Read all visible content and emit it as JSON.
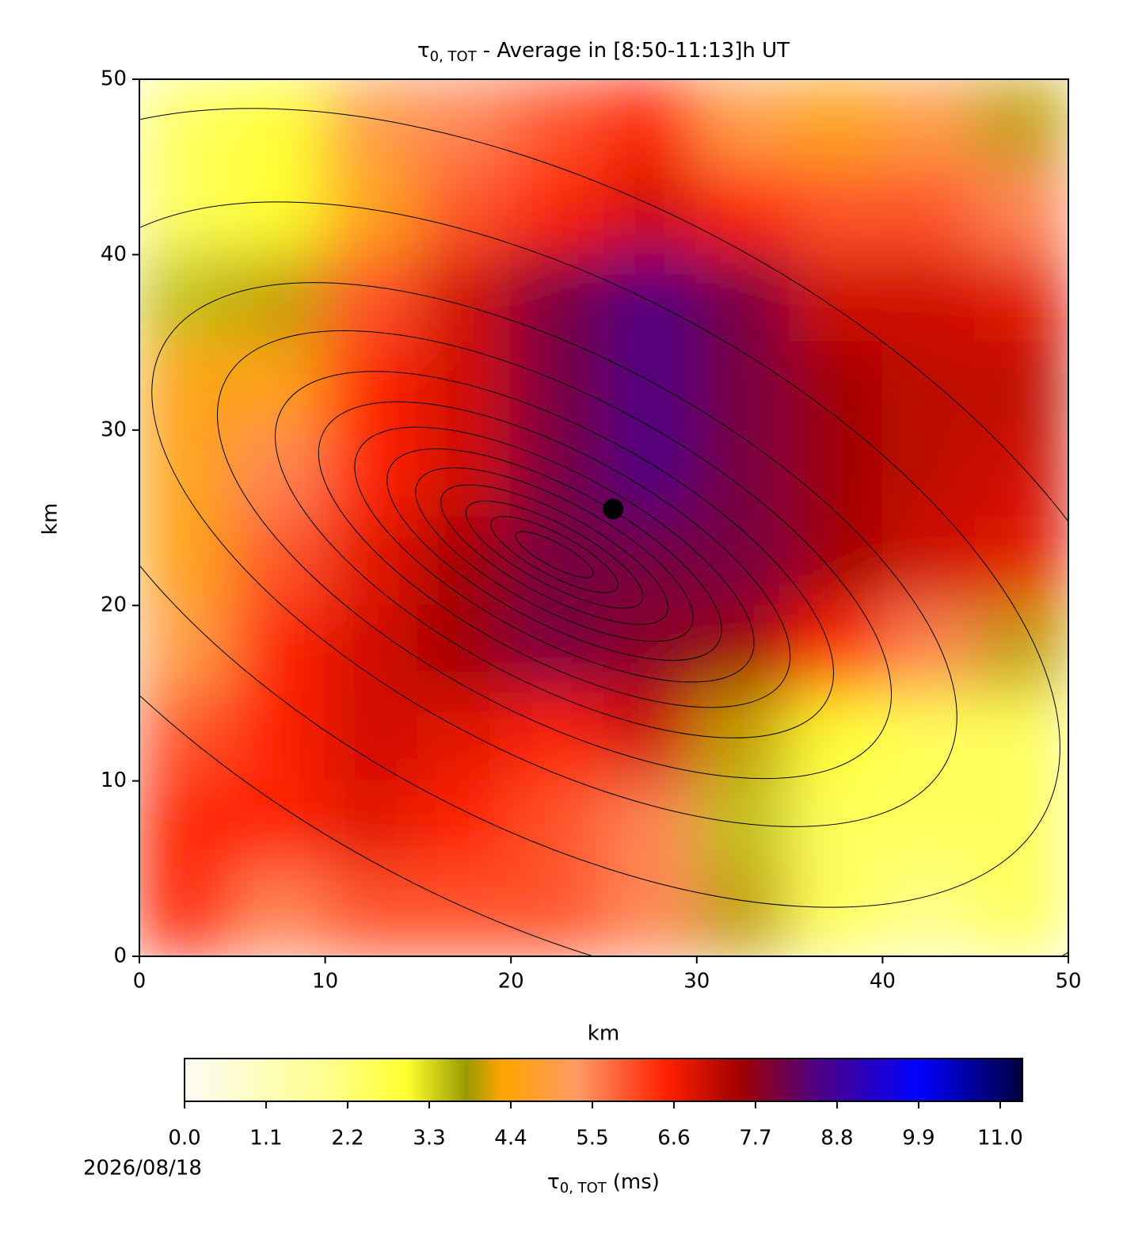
{
  "chart_data": {
    "type": "heatmap",
    "title": {
      "symbol": "τ",
      "subscript": "0, TOT",
      "text": "- Average in [8:50-11:13]h UT"
    },
    "xlabel": "km",
    "ylabel": "km",
    "xlim": [
      0,
      50
    ],
    "ylim": [
      0,
      50
    ],
    "xticks": [
      0,
      10,
      20,
      30,
      40,
      50
    ],
    "yticks": [
      0,
      10,
      20,
      30,
      40,
      50
    ],
    "x": [
      2.5,
      7.5,
      12.5,
      17.5,
      22.5,
      27.5,
      32.5,
      37.5,
      42.5,
      47.5
    ],
    "y": [
      47.5,
      42.5,
      37.5,
      32.5,
      27.5,
      22.5,
      17.5,
      12.5,
      7.5,
      2.5
    ],
    "z": [
      [
        2.5,
        3.0,
        5.0,
        5.5,
        6.0,
        6.5,
        5.0,
        4.5,
        5.0,
        4.0
      ],
      [
        2.5,
        3.0,
        4.5,
        6.0,
        6.5,
        7.0,
        6.5,
        6.0,
        6.0,
        5.5
      ],
      [
        3.5,
        4.0,
        6.0,
        7.0,
        8.0,
        8.5,
        8.0,
        7.0,
        7.0,
        6.8
      ],
      [
        4.5,
        4.5,
        6.5,
        7.0,
        8.0,
        8.5,
        8.0,
        7.5,
        7.2,
        7.2
      ],
      [
        4.5,
        5.5,
        6.5,
        7.0,
        8.0,
        8.5,
        8.0,
        7.5,
        7.2,
        7.0
      ],
      [
        4.5,
        6.0,
        6.8,
        7.5,
        8.0,
        8.0,
        8.0,
        7.5,
        7.0,
        6.8
      ],
      [
        5.0,
        6.5,
        7.0,
        7.5,
        8.0,
        7.8,
        7.5,
        6.5,
        5.5,
        4.0
      ],
      [
        6.0,
        6.5,
        7.0,
        6.8,
        6.5,
        7.0,
        4.0,
        3.0,
        2.5,
        2.5
      ],
      [
        6.5,
        6.5,
        6.8,
        6.5,
        6.0,
        5.5,
        3.5,
        2.5,
        2.5,
        2.5
      ],
      [
        6.5,
        5.5,
        6.0,
        6.0,
        6.0,
        5.5,
        4.0,
        2.5,
        2.0,
        2.5
      ]
    ],
    "marker": {
      "x": 25.5,
      "y": 25.5,
      "color": "#000000"
    },
    "colorbar": {
      "label": {
        "symbol": "τ",
        "subscript": "0, TOT",
        "text": "(ms)"
      },
      "lim": [
        0,
        11.3
      ],
      "ticks": [
        {
          "value": 0,
          "label": "0.0"
        },
        {
          "value": 1.1,
          "label": "1.1"
        },
        {
          "value": 2.2,
          "label": "2.2"
        },
        {
          "value": 3.3,
          "label": "3.3"
        },
        {
          "value": 4.4,
          "label": "4.4"
        },
        {
          "value": 5.5,
          "label": "5.5"
        },
        {
          "value": 6.6,
          "label": "6.6"
        },
        {
          "value": 7.7,
          "label": "7.7"
        },
        {
          "value": 8.8,
          "label": "8.8"
        },
        {
          "value": 9.9,
          "label": "9.9"
        },
        {
          "value": 11,
          "label": "11.0"
        }
      ],
      "colormap": [
        [
          0,
          "#fbfbf5"
        ],
        [
          2.0,
          "#ffff88"
        ],
        [
          3.0,
          "#ffff30"
        ],
        [
          3.8,
          "#9a9a00"
        ],
        [
          4.3,
          "#ffa500"
        ],
        [
          5.3,
          "#ff9966"
        ],
        [
          6.5,
          "#ff2000"
        ],
        [
          7.5,
          "#a00000"
        ],
        [
          8.5,
          "#500080"
        ],
        [
          9.9,
          "#0000ff"
        ],
        [
          11.3,
          "#000040"
        ]
      ]
    },
    "date": "2026/08/18"
  }
}
